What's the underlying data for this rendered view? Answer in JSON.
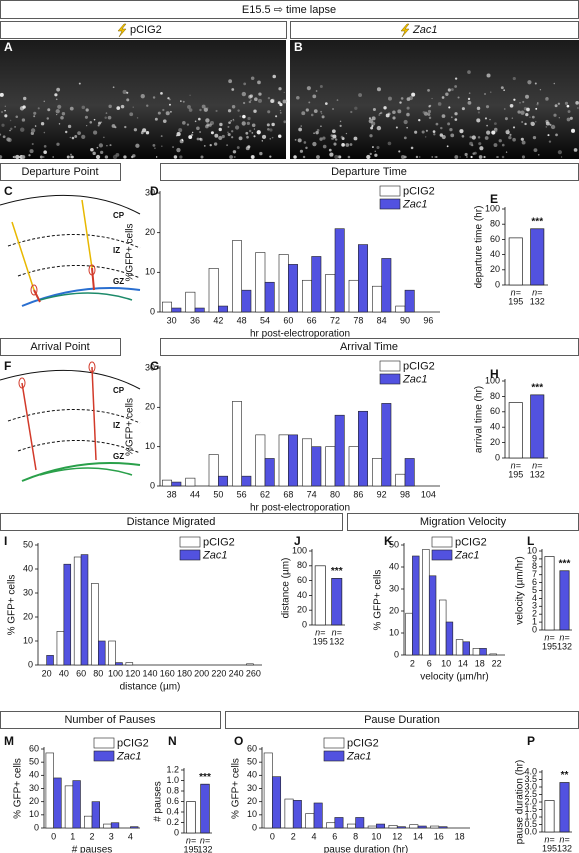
{
  "header": {
    "title": "E15.5 ⇨ time lapse"
  },
  "conditions": [
    "pCIG2",
    "Zac1"
  ],
  "panel_letters": [
    "A",
    "B",
    "C",
    "D",
    "E",
    "F",
    "G",
    "H",
    "I",
    "J",
    "K",
    "L",
    "M",
    "N",
    "O",
    "P"
  ],
  "section_headers": [
    "Departure Point",
    "Departure Time",
    "Arrival Point",
    "Arrival Time",
    "Distance Migrated",
    "Migration Velocity",
    "Number of Pauses",
    "Pause Duration"
  ],
  "diagram_labels": [
    "CP",
    "IZ",
    "GZ"
  ],
  "chart_data": [
    {
      "type": "bar",
      "categories": [
        "30",
        "36",
        "42",
        "48",
        "54",
        "60",
        "66",
        "72",
        "78",
        "84",
        "90",
        "96"
      ],
      "series": [
        {
          "name": "pCIG2",
          "color": "#ffffff",
          "values": [
            2.5,
            5,
            11,
            18,
            15,
            14.5,
            8,
            9.5,
            8,
            6.5,
            1.5,
            0
          ]
        },
        {
          "name": "Zac1",
          "color": "#5252e0",
          "values": [
            1,
            1,
            1.5,
            5.5,
            7.5,
            12,
            14,
            21,
            17,
            13.5,
            5.5,
            0
          ]
        }
      ],
      "ylim": [
        0,
        30
      ],
      "yticks": [
        0,
        10,
        20,
        30
      ],
      "y_label": "%GFP+ cells",
      "x_label": "hr post-electroporation"
    },
    {
      "type": "bar",
      "values": [
        62,
        74
      ],
      "colors": [
        "#ffffff",
        "#5252e0"
      ],
      "ylim": [
        0,
        100
      ],
      "yticks": [
        0,
        20,
        40,
        60,
        80,
        100
      ],
      "y_label": "departure time (hr)",
      "n_labels": [
        [
          "n=",
          "195"
        ],
        [
          "n=",
          "132"
        ]
      ],
      "annotation": "***"
    },
    {
      "type": "bar",
      "categories": [
        "38",
        "44",
        "50",
        "56",
        "62",
        "68",
        "74",
        "80",
        "86",
        "92",
        "98",
        "104"
      ],
      "series": [
        {
          "name": "pCIG2",
          "color": "#ffffff",
          "values": [
            1.5,
            2,
            8,
            21.5,
            13,
            13,
            12,
            10,
            10,
            7,
            3,
            0
          ]
        },
        {
          "name": "Zac1",
          "color": "#5252e0",
          "values": [
            1,
            0,
            2.5,
            2.5,
            7,
            13,
            10,
            18,
            19,
            21,
            7,
            0
          ]
        }
      ],
      "ylim": [
        0,
        30
      ],
      "yticks": [
        0,
        10,
        20,
        30
      ],
      "y_label": "%GFP+ cells",
      "x_label": "hr post-electroporation"
    },
    {
      "type": "bar",
      "values": [
        72,
        82
      ],
      "colors": [
        "#ffffff",
        "#5252e0"
      ],
      "ylim": [
        0,
        100
      ],
      "yticks": [
        0,
        20,
        40,
        60,
        80,
        100
      ],
      "y_label": "arrival time (hr)",
      "n_labels": [
        [
          "n=",
          "195"
        ],
        [
          "n=",
          "132"
        ]
      ],
      "annotation": "***"
    },
    {
      "type": "bar",
      "categories": [
        "20",
        "40",
        "60",
        "80",
        "100",
        "120",
        "140",
        "160",
        "180",
        "200",
        "220",
        "240",
        "260"
      ],
      "series": [
        {
          "name": "pCIG2",
          "color": "#ffffff",
          "values": [
            0,
            14,
            45,
            34,
            10,
            1,
            0,
            0,
            0,
            0,
            0,
            0,
            0.5
          ]
        },
        {
          "name": "Zac1",
          "color": "#5252e0",
          "values": [
            4,
            42,
            46,
            10,
            1,
            0,
            0,
            0,
            0,
            0,
            0,
            0,
            0
          ]
        }
      ],
      "ylim": [
        0,
        50
      ],
      "yticks": [
        0,
        10,
        20,
        30,
        40,
        50
      ],
      "y_label": "% GFP+ cells",
      "x_label": "distance (µm)"
    },
    {
      "type": "bar",
      "values": [
        80,
        63
      ],
      "colors": [
        "#ffffff",
        "#5252e0"
      ],
      "ylim": [
        0,
        100
      ],
      "yticks": [
        0,
        20,
        40,
        60,
        80,
        100
      ],
      "y_label": "distance (µm)",
      "n_labels": [
        [
          "n=",
          "195"
        ],
        [
          "n=",
          "132"
        ]
      ],
      "annotation": "***"
    },
    {
      "type": "bar",
      "categories": [
        "2",
        "6",
        "10",
        "14",
        "18",
        "22"
      ],
      "series": [
        {
          "name": "pCIG2",
          "color": "#ffffff",
          "values": [
            19,
            48,
            25,
            7,
            3,
            0.5
          ]
        },
        {
          "name": "Zac1",
          "color": "#5252e0",
          "values": [
            45,
            36,
            15,
            6,
            3,
            0
          ]
        }
      ],
      "ylim": [
        0,
        50
      ],
      "yticks": [
        0,
        10,
        20,
        30,
        40,
        50
      ],
      "y_label": "% GFP+ cells",
      "x_label": "velocity (µm/hr)"
    },
    {
      "type": "bar",
      "values": [
        9.3,
        7.5
      ],
      "colors": [
        "#ffffff",
        "#5252e0"
      ],
      "ylim": [
        0,
        10
      ],
      "yticks": [
        0,
        1,
        2,
        3,
        4,
        5,
        6,
        7,
        8,
        9,
        10
      ],
      "y_label": "velocity (µm/hr)",
      "n_labels": [
        [
          "n=",
          "195"
        ],
        [
          "n=",
          "132"
        ]
      ],
      "annotation": "***"
    },
    {
      "type": "bar",
      "categories": [
        "0",
        "1",
        "2",
        "3",
        "4"
      ],
      "series": [
        {
          "name": "pCIG2",
          "color": "#ffffff",
          "values": [
            57,
            32,
            9,
            3,
            0
          ]
        },
        {
          "name": "Zac1",
          "color": "#5252e0",
          "values": [
            38,
            36,
            20,
            4,
            1
          ]
        }
      ],
      "ylim": [
        0,
        60
      ],
      "yticks": [
        0,
        10,
        20,
        30,
        40,
        50,
        60
      ],
      "y_label": "% GFP+ cells",
      "x_label": "# pauses"
    },
    {
      "type": "bar",
      "values": [
        0.6,
        0.93
      ],
      "colors": [
        "#ffffff",
        "#5252e0"
      ],
      "ylim": [
        0,
        1.2
      ],
      "yticks": [
        0,
        0.2,
        0.4,
        0.6,
        0.8,
        {
          "value": 1,
          "label": "1.0"
        },
        1.2
      ],
      "y_label": "# pauses",
      "n_labels": [
        [
          "n=",
          "195"
        ],
        [
          "n=",
          "132"
        ]
      ],
      "annotation": "***"
    },
    {
      "type": "bar",
      "categories": [
        "0",
        "2",
        "4",
        "6",
        "8",
        "10",
        "12",
        "14",
        "16",
        "18"
      ],
      "series": [
        {
          "name": "pCIG2",
          "color": "#ffffff",
          "values": [
            57,
            22,
            11,
            4,
            3,
            1.5,
            2,
            2.5,
            1.5,
            0
          ]
        },
        {
          "name": "Zac1",
          "color": "#5252e0",
          "values": [
            39,
            21,
            19,
            8,
            8,
            3,
            1,
            1.5,
            1,
            0
          ]
        }
      ],
      "ylim": [
        0,
        60
      ],
      "yticks": [
        0,
        10,
        20,
        30,
        40,
        50,
        60
      ],
      "y_label": "% GFP+ cells",
      "x_label": "pause duration (hr)"
    },
    {
      "type": "bar",
      "values": [
        2.1,
        3.3
      ],
      "colors": [
        "#ffffff",
        "#5252e0"
      ],
      "ylim": [
        0,
        4
      ],
      "yticks": [
        {
          "value": 0,
          "label": "0.0"
        },
        0.5,
        {
          "value": 1,
          "label": "1.0"
        },
        1.5,
        {
          "value": 2,
          "label": "2.0"
        },
        2.5,
        {
          "value": 3,
          "label": "3.0"
        },
        3.5,
        {
          "value": 4,
          "label": "4.0"
        }
      ],
      "y_label": "pause duration (hr)",
      "n_labels": [
        [
          "n=",
          "195"
        ],
        [
          "n=",
          "132"
        ]
      ],
      "annotation": "**"
    }
  ]
}
